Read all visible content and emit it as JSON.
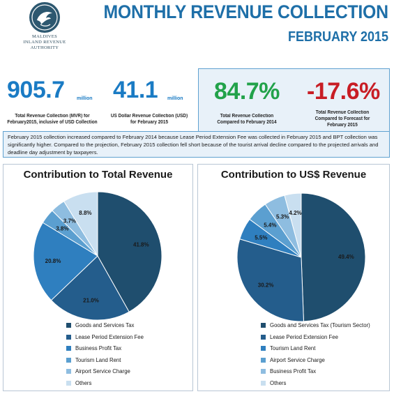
{
  "header": {
    "logo_text_lines": [
      "MALDIVES",
      "INLAND REVENUE",
      "AUTHORITY"
    ],
    "title": "MONTHLY REVENUE COLLECTION",
    "subtitle": "FEBRUARY 2015"
  },
  "kpis": {
    "total_mvr": {
      "value": "905.7",
      "unit": "million",
      "label_lines": [
        "Total Revenue Collection (MVR) for",
        "February2015, inclusive of USD Collection"
      ]
    },
    "usd": {
      "value": "41.1",
      "unit": "million",
      "label_lines": [
        "US Dollar Revenue Collection (USD)",
        "for February 2015"
      ]
    },
    "vs_2014": {
      "value": "84.7%",
      "label_lines": [
        "Total Revenue Collection",
        "Compared to February 2014"
      ]
    },
    "vs_forecast": {
      "value": "-17.6%",
      "label_lines": [
        "Total Revenue Collection",
        "Compared to Forecast for",
        "February 2015"
      ]
    }
  },
  "note": "February 2015 collection increased compared to February 2014 because Lease Period Extension Fee was collected in February 2015 and BPT collection was significantly higher. Compared to the projection, February 2015 collection fell short because of the tourist arrival decline compared to the projected arrivals and deadline day adjustment by taxpayers.",
  "colors": {
    "title_blue": "#1e6fa8",
    "kpi_blue": "#1a7bc4",
    "kpi_green": "#22a24a",
    "kpi_red": "#c81d25"
  },
  "chart_data": [
    {
      "type": "pie",
      "title": "Contribution to Total Revenue",
      "categories": [
        "Goods and Services Tax",
        "Lease Period Extension Fee",
        "Business Profit Tax",
        "Tourism Land Rent",
        "Airport Service Charge",
        "Others"
      ],
      "values": [
        41.8,
        21.0,
        20.8,
        3.8,
        3.7,
        8.8
      ],
      "labels": [
        "41.8%",
        "21.0%",
        "20.8%",
        "3.8%",
        "3.7%",
        "8.8%"
      ],
      "colors": [
        "#1f4e6e",
        "#245d8c",
        "#2f7fbf",
        "#5b9fd0",
        "#8ebde0",
        "#c9dff0"
      ],
      "legend": "bottom-left"
    },
    {
      "type": "pie",
      "title": "Contribution to US$ Revenue",
      "categories": [
        "Goods and Services Tax (Tourism Sector)",
        "Lease Period Extension Fee",
        "Tourism Land Rent",
        "Airport Service Charge",
        "Business Profit Tax",
        "Others"
      ],
      "values": [
        49.4,
        30.2,
        5.5,
        5.4,
        5.3,
        4.2
      ],
      "labels": [
        "49.4%",
        "30.2%",
        "5.5%",
        "5.4%",
        "5.3%",
        "4.2%"
      ],
      "colors": [
        "#1f4e6e",
        "#245d8c",
        "#2f7fbf",
        "#5b9fd0",
        "#8ebde0",
        "#c9dff0"
      ],
      "legend": "bottom-left"
    }
  ]
}
